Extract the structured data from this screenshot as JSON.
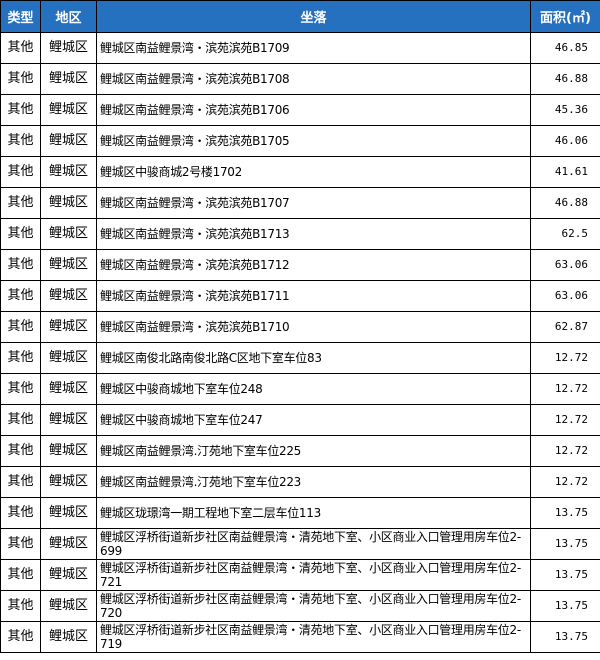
{
  "table": {
    "header": [
      "类型",
      "地区",
      "坐落",
      "面积(㎡)"
    ],
    "rows": [
      [
        "其他",
        "鲤城区",
        "鲤城区南益鲤景湾・滨苑滨苑B1709",
        "46.85"
      ],
      [
        "其他",
        "鲤城区",
        "鲤城区南益鲤景湾・滨苑滨苑B1708",
        "46.88"
      ],
      [
        "其他",
        "鲤城区",
        "鲤城区南益鲤景湾・滨苑滨苑B1706",
        "45.36"
      ],
      [
        "其他",
        "鲤城区",
        "鲤城区南益鲤景湾・滨苑滨苑B1705",
        "46.06"
      ],
      [
        "其他",
        "鲤城区",
        "鲤城区中骏商城2号楼1702",
        "41.61"
      ],
      [
        "其他",
        "鲤城区",
        "鲤城区南益鲤景湾・滨苑滨苑B1707",
        "46.88"
      ],
      [
        "其他",
        "鲤城区",
        "鲤城区南益鲤景湾・滨苑滨苑B1713",
        "62.5"
      ],
      [
        "其他",
        "鲤城区",
        "鲤城区南益鲤景湾・滨苑滨苑B1712",
        "63.06"
      ],
      [
        "其他",
        "鲤城区",
        "鲤城区南益鲤景湾・滨苑滨苑B1711",
        "63.06"
      ],
      [
        "其他",
        "鲤城区",
        "鲤城区南益鲤景湾・滨苑滨苑B1710",
        "62.87"
      ],
      [
        "其他",
        "鲤城区",
        "鲤城区南俊北路南俊北路C区地下室车位83",
        "12.72"
      ],
      [
        "其他",
        "鲤城区",
        "鲤城区中骏商城地下室车位248",
        "12.72"
      ],
      [
        "其他",
        "鲤城区",
        "鲤城区中骏商城地下室车位247",
        "12.72"
      ],
      [
        "其他",
        "鲤城区",
        "鲤城区南益鲤景湾.汀苑地下室车位225",
        "12.72"
      ],
      [
        "其他",
        "鲤城区",
        "鲤城区南益鲤景湾.汀苑地下室车位223",
        "12.72"
      ],
      [
        "其他",
        "鲤城区",
        "鲤城区珑璟湾一期工程地下室二层车位113",
        "13.75"
      ],
      [
        "其他",
        "鲤城区",
        "鲤城区浮桥街道新步社区南益鲤景湾・清苑地下室、小区商业入口管理用房车位2-699",
        "13.75"
      ],
      [
        "其他",
        "鲤城区",
        "鲤城区浮桥街道新步社区南益鲤景湾・清苑地下室、小区商业入口管理用房车位2-721",
        "13.75"
      ],
      [
        "其他",
        "鲤城区",
        "鲤城区浮桥街道新步社区南益鲤景湾・清苑地下室、小区商业入口管理用房车位2-720",
        "13.75"
      ],
      [
        "其他",
        "鲤城区",
        "鲤城区浮桥街道新步社区南益鲤景湾・清苑地下室、小区商业入口管理用房车位2-719",
        "13.75"
      ]
    ]
  }
}
